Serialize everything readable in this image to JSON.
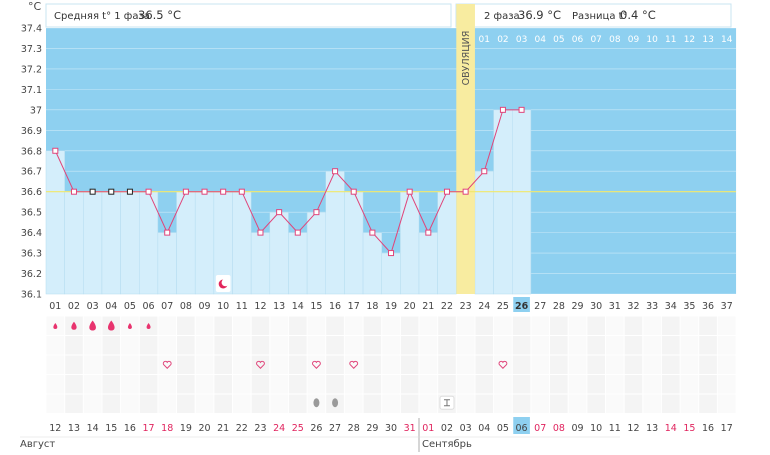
{
  "header": {
    "unit": "°C",
    "phase1_label": "Средняя t° 1 фаза",
    "phase1_value": "36.5 °C",
    "phase2_label": "2 фаза",
    "phase2_value": "36.9 °C",
    "diff_label": "Разница t°",
    "diff_value": "0.4 °C"
  },
  "ovulation_label": "ОВУЛЯЦИЯ",
  "phase2_day_numbers": [
    "01",
    "02",
    "03",
    "04",
    "05",
    "06",
    "07",
    "08",
    "09",
    "10",
    "11",
    "12",
    "13",
    "14"
  ],
  "colors": {
    "phase1_bg": "#8ed0f0",
    "column_fill": "#d4eefb",
    "temp_line": "#e0457a",
    "coverline": "#f2e86a",
    "ovulation_band": "#f8eca0",
    "weekend_date": "#e0245e",
    "highlight_cell": "#8ed0f0"
  },
  "chart_data": {
    "type": "line",
    "title": "",
    "ylabel": "°C",
    "ylim": [
      36.1,
      37.4
    ],
    "yticks": [
      "36.1",
      "36.2",
      "36.3",
      "36.4",
      "36.5",
      "36.6",
      "36.7",
      "36.8",
      "36.9",
      "37",
      "37.1",
      "37.2",
      "37.3",
      "37.4"
    ],
    "coverline": 36.6,
    "cycle_days": [
      "01",
      "02",
      "03",
      "04",
      "05",
      "06",
      "07",
      "08",
      "09",
      "10",
      "11",
      "12",
      "13",
      "14",
      "15",
      "16",
      "17",
      "18",
      "19",
      "20",
      "21",
      "22",
      "23",
      "24",
      "25",
      "26",
      "27",
      "28",
      "29",
      "30",
      "31",
      "32",
      "33",
      "34",
      "35",
      "36",
      "37"
    ],
    "temperatures": [
      36.8,
      36.6,
      36.6,
      36.6,
      36.6,
      36.6,
      36.4,
      36.6,
      36.6,
      36.6,
      36.6,
      36.4,
      36.5,
      36.4,
      36.5,
      36.7,
      36.6,
      36.4,
      36.3,
      36.6,
      36.4,
      36.6,
      36.6,
      36.7,
      37.0,
      37.0
    ],
    "dark_markers_days": [
      3,
      4,
      5
    ],
    "ovulation_day": 23,
    "current_day": 26,
    "dates": [
      "12",
      "13",
      "14",
      "15",
      "16",
      "17",
      "18",
      "19",
      "20",
      "21",
      "22",
      "23",
      "24",
      "25",
      "26",
      "27",
      "28",
      "29",
      "30",
      "31",
      "01",
      "02",
      "03",
      "04",
      "05",
      "06",
      "07",
      "08",
      "09",
      "10",
      "11",
      "12",
      "13",
      "14",
      "15",
      "16",
      "17"
    ],
    "weekend_dates_idx": [
      5,
      6,
      12,
      13,
      19,
      20,
      26,
      27,
      33,
      34
    ],
    "current_date_idx": 25,
    "months": [
      {
        "label": "Август",
        "start_idx": 0
      },
      {
        "label": "Сентябрь",
        "start_idx": 20
      }
    ],
    "symptoms": {
      "bleeding": [
        {
          "day": 1,
          "level": 1
        },
        {
          "day": 2,
          "level": 2
        },
        {
          "day": 3,
          "level": 3
        },
        {
          "day": 4,
          "level": 3
        },
        {
          "day": 5,
          "level": 1
        },
        {
          "day": 6,
          "level": 1
        }
      ],
      "moon": [
        10
      ],
      "heart": [
        7,
        12,
        15,
        17,
        25
      ],
      "drop": [
        15,
        16
      ],
      "test": [
        22
      ]
    }
  }
}
